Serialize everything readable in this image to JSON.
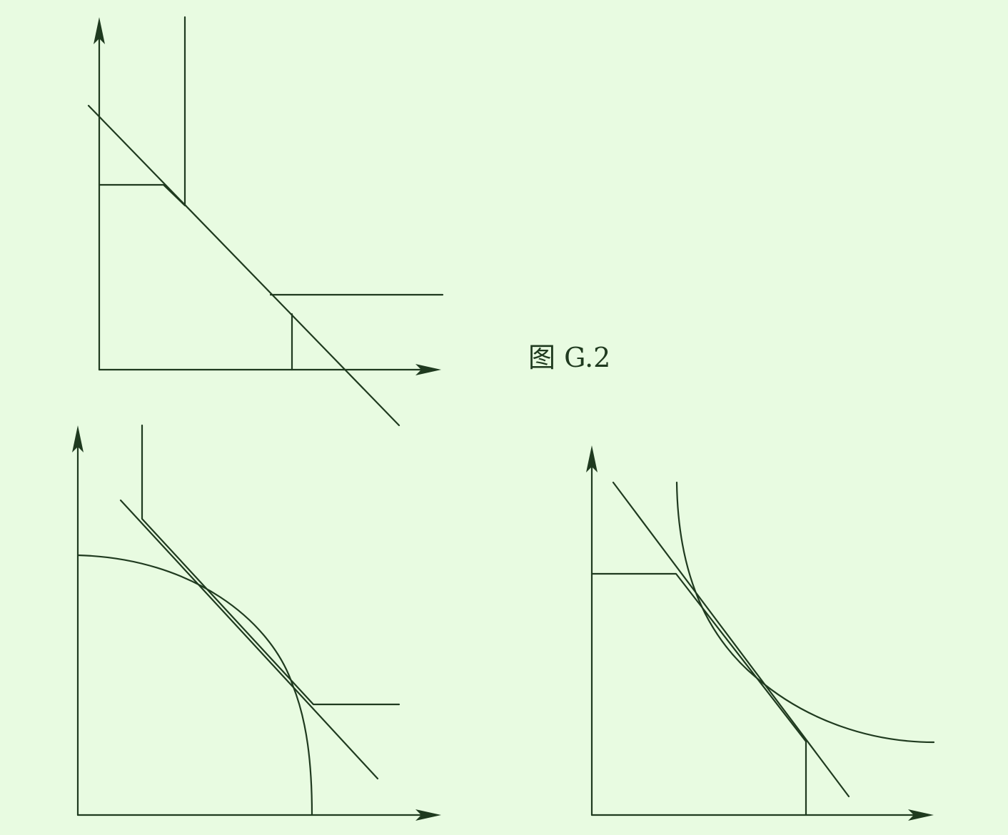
{
  "caption": "图 G.2"
}
